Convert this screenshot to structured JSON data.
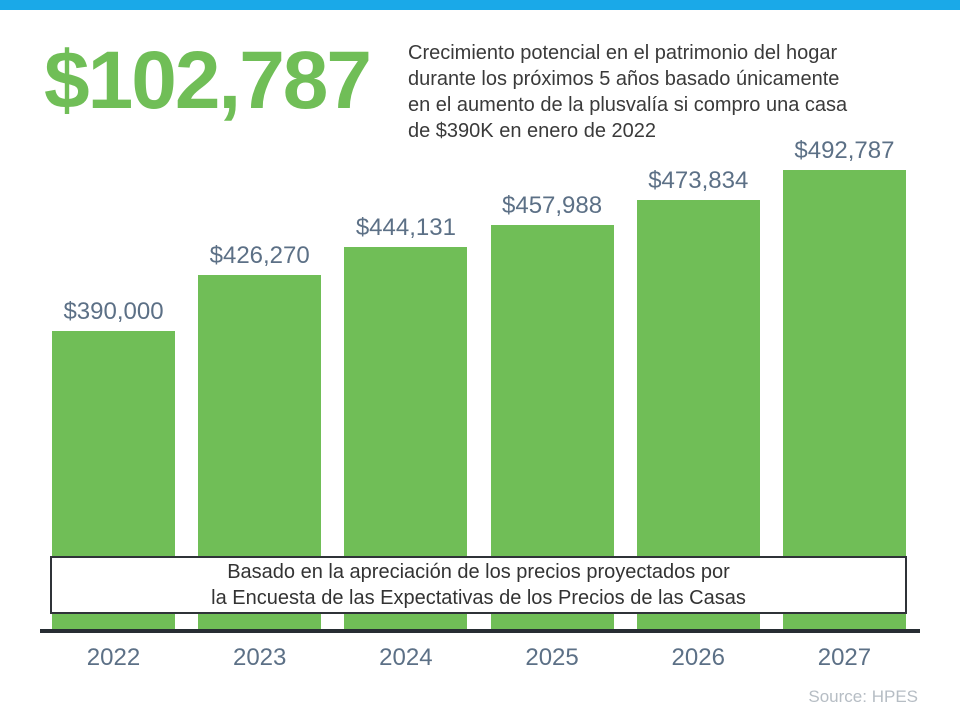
{
  "page": {
    "accent_color": "#1AA9E8",
    "green_color": "#70BE57",
    "headline": "$102,787",
    "description": "Crecimiento potencial en el patrimonio del hogar\ndurante los próximos 5 años basado únicamente\nen el aumento de la plusvalía si compro una casa\nde $390K en enero de 2022"
  },
  "chart_data": {
    "type": "bar",
    "categories": [
      "2022",
      "2023",
      "2024",
      "2025",
      "2026",
      "2027"
    ],
    "values": [
      390000,
      426270,
      444131,
      457988,
      473834,
      492787
    ],
    "value_labels": [
      "$390,000",
      "$426,270",
      "$444,131",
      "$457,988",
      "$473,834",
      "$492,787"
    ],
    "title": "",
    "xlabel": "",
    "ylabel": "",
    "ylim": [
      200000,
      500000
    ],
    "grid": false,
    "legend": "none",
    "bar_color": "#70BE57",
    "label_color": "#5C7086",
    "note": "Basado en la apreciación de los precios proyectados por\nla Encuesta de las Expectativas de los Precios de las Casas"
  },
  "footer": {
    "source": "Source: HPES"
  }
}
